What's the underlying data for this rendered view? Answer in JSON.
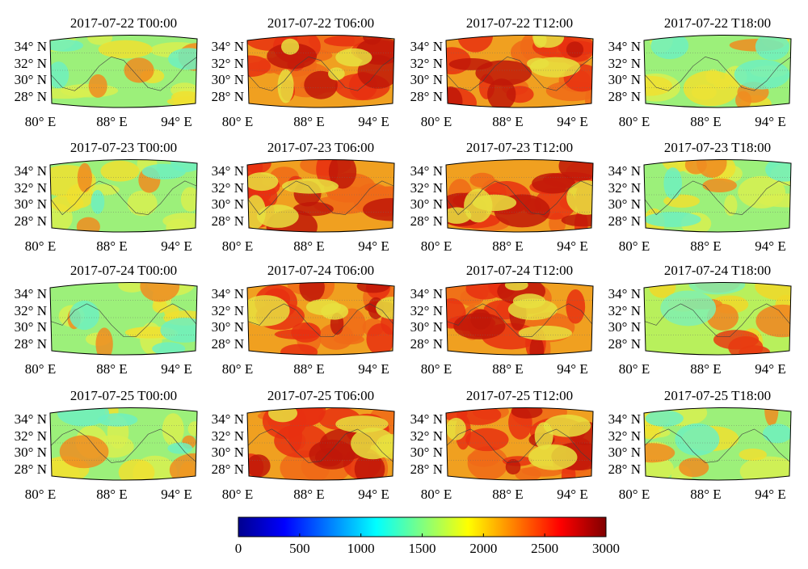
{
  "figure": {
    "rows": [
      {
        "date": "2017-07-22",
        "panels": [
          {
            "title": "2017-07-22  T00:00",
            "level": "low"
          },
          {
            "title": "2017-07-22  T06:00",
            "level": "high"
          },
          {
            "title": "2017-07-22  T12:00",
            "level": "high"
          },
          {
            "title": "2017-07-22  T18:00",
            "level": "low"
          }
        ]
      },
      {
        "date": "2017-07-23",
        "panels": [
          {
            "title": "2017-07-23  T00:00",
            "level": "low"
          },
          {
            "title": "2017-07-23  T06:00",
            "level": "high"
          },
          {
            "title": "2017-07-23  T12:00",
            "level": "high"
          },
          {
            "title": "2017-07-23  T18:00",
            "level": "low"
          }
        ]
      },
      {
        "date": "2017-07-24",
        "panels": [
          {
            "title": "2017-07-24  T00:00",
            "level": "low"
          },
          {
            "title": "2017-07-24  T06:00",
            "level": "high"
          },
          {
            "title": "2017-07-24  T12:00",
            "level": "high"
          },
          {
            "title": "2017-07-24  T18:00",
            "level": "mid"
          }
        ]
      },
      {
        "date": "2017-07-25",
        "panels": [
          {
            "title": "2017-07-25  T00:00",
            "level": "low"
          },
          {
            "title": "2017-07-25  T06:00",
            "level": "high"
          },
          {
            "title": "2017-07-25  T12:00",
            "level": "high"
          },
          {
            "title": "2017-07-25  T18:00",
            "level": "low"
          }
        ]
      }
    ],
    "latitude_labels": [
      "34° N",
      "32° N",
      "30° N",
      "28° N"
    ],
    "longitude_labels": [
      "80° E",
      "88° E",
      "94° E"
    ],
    "colorbar": {
      "min": 0,
      "max": 3000,
      "ticks": [
        "0",
        "500",
        "1000",
        "1500",
        "2000",
        "2500",
        "3000"
      ],
      "colors": [
        "#00008f",
        "#0000ff",
        "#0080ff",
        "#00ffff",
        "#80ff80",
        "#ffff00",
        "#ff8000",
        "#ff0000",
        "#800000"
      ]
    }
  }
}
